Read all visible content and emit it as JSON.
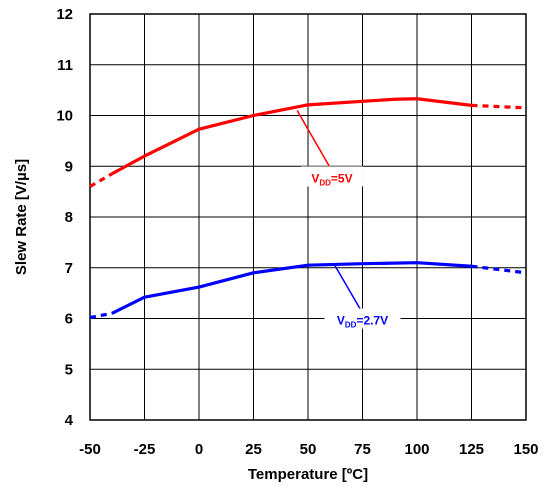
{
  "chart_data": {
    "type": "line",
    "title": "",
    "xlabel": "Temperature [ºC]",
    "ylabel": "Slew Rate [V/µs]",
    "xlim": [
      -50,
      150
    ],
    "ylim": [
      4,
      12
    ],
    "xticks": [
      -50,
      -25,
      0,
      25,
      50,
      75,
      100,
      125,
      150
    ],
    "yticks": [
      4,
      5,
      6,
      7,
      8,
      9,
      10,
      11,
      12
    ],
    "grid": true,
    "legend": "none",
    "series": [
      {
        "name": "VDD=5V",
        "label_main": "V",
        "label_sub": "DD",
        "label_rest": "=5V",
        "color": "#ff0000",
        "dashed_segments": [
          {
            "x": [
              -50,
              -40
            ],
            "y": [
              8.6,
              8.85
            ]
          },
          {
            "x": [
              125,
              150
            ],
            "y": [
              10.2,
              10.15
            ]
          }
        ],
        "x": [
          -40,
          -25,
          0,
          25,
          50,
          75,
          90,
          100,
          125
        ],
        "y": [
          8.85,
          9.2,
          9.73,
          10.0,
          10.21,
          10.28,
          10.32,
          10.33,
          10.2
        ]
      },
      {
        "name": "VDD=2.7V",
        "label_main": "V",
        "label_sub": "DD",
        "label_rest": "=2.7V",
        "color": "#0000ff",
        "dashed_segments": [
          {
            "x": [
              -50,
              -40
            ],
            "y": [
              6.02,
              6.1
            ]
          },
          {
            "x": [
              125,
              150
            ],
            "y": [
              7.03,
              6.9
            ]
          }
        ],
        "x": [
          -40,
          -25,
          0,
          25,
          50,
          75,
          100,
          125
        ],
        "y": [
          6.1,
          6.42,
          6.62,
          6.9,
          7.05,
          7.08,
          7.1,
          7.03
        ]
      }
    ]
  }
}
